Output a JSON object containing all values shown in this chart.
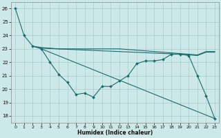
{
  "xlabel": "Humidex (Indice chaleur)",
  "bg_color": "#cce8e8",
  "grid_color": "#aacccc",
  "line_color": "#1a6b6b",
  "xlim": [
    -0.5,
    23.5
  ],
  "ylim": [
    17.5,
    26.5
  ],
  "yticks": [
    18,
    19,
    20,
    21,
    22,
    23,
    24,
    25,
    26
  ],
  "xticks": [
    0,
    1,
    2,
    3,
    4,
    5,
    6,
    7,
    8,
    9,
    10,
    11,
    12,
    13,
    14,
    15,
    16,
    17,
    18,
    19,
    20,
    21,
    22,
    23
  ],
  "series1_x": [
    0,
    1,
    2,
    3,
    4,
    5,
    6,
    7,
    8,
    9,
    10,
    11,
    12,
    13,
    14,
    15,
    16,
    17,
    18,
    19,
    20,
    21,
    22,
    23
  ],
  "series1_y": [
    26.0,
    24.0,
    23.2,
    23.0,
    22.0,
    21.1,
    20.5,
    19.6,
    19.7,
    19.4,
    20.2,
    20.2,
    20.6,
    21.0,
    21.9,
    22.1,
    22.1,
    22.2,
    22.6,
    22.6,
    22.5,
    21.0,
    19.5,
    17.8
  ],
  "series2_x": [
    2,
    3,
    4,
    5,
    6,
    7,
    8,
    9,
    10,
    11,
    12,
    13,
    14,
    15,
    16,
    17,
    18,
    19,
    20,
    21,
    22,
    23
  ],
  "series2_y": [
    23.2,
    23.1,
    23.05,
    23.0,
    23.0,
    23.0,
    23.0,
    23.0,
    23.0,
    23.0,
    23.0,
    22.95,
    22.9,
    22.85,
    22.8,
    22.75,
    22.7,
    22.65,
    22.6,
    22.55,
    22.8,
    22.8
  ],
  "series3_x": [
    2,
    3,
    19,
    20,
    21,
    22,
    23
  ],
  "series3_y": [
    23.2,
    23.05,
    22.6,
    22.55,
    22.5,
    22.75,
    22.75
  ],
  "series4_x": [
    3,
    23
  ],
  "series4_y": [
    23.0,
    17.8
  ]
}
